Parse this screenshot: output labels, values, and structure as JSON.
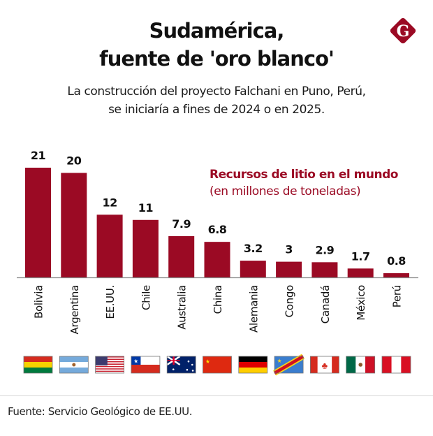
{
  "header": {
    "title_line1": "Sudamérica,",
    "title_line2": "fuente de 'oro blanco'",
    "subtitle_line1": "La construcción del proyecto Falchani en Puno, Perú,",
    "subtitle_line2": "se iniciaría a fines de 2024 o en 2025.",
    "logo_letter": "G",
    "logo_icon": "brand-g-diamond-icon"
  },
  "legend": {
    "title": "Recursos de litio en el mundo",
    "subtitle": "(en millones de toneladas)"
  },
  "colors": {
    "bar": "#9b0a24",
    "axis": "#888888",
    "text": "#111111"
  },
  "chart_data": {
    "type": "bar",
    "title": "Recursos de litio en el mundo",
    "subtitle": "(en millones de toneladas)",
    "xlabel": "",
    "ylabel": "",
    "ylim": [
      0,
      21
    ],
    "grid": false,
    "legend_position": "top-right",
    "categories": [
      "Bolivia",
      "Argentina",
      "EE.UU.",
      "Chile",
      "Australia",
      "China",
      "Alemania",
      "Congo",
      "Canadá",
      "México",
      "Perú"
    ],
    "values": [
      21,
      20,
      12,
      11,
      7.9,
      6.8,
      3.2,
      3,
      2.9,
      1.7,
      0.8
    ],
    "value_labels": [
      "21",
      "20",
      "12",
      "11",
      "7.9",
      "6.8",
      "3.2",
      "3",
      "2.9",
      "1.7",
      "0.8"
    ],
    "flags": [
      "bolivia-flag",
      "argentina-flag",
      "usa-flag",
      "chile-flag",
      "australia-flag",
      "china-flag",
      "germany-flag",
      "congo-flag",
      "canada-flag",
      "mexico-flag",
      "peru-flag"
    ]
  },
  "footer": {
    "source": "Fuente: Servicio Geológico de EE.UU."
  }
}
